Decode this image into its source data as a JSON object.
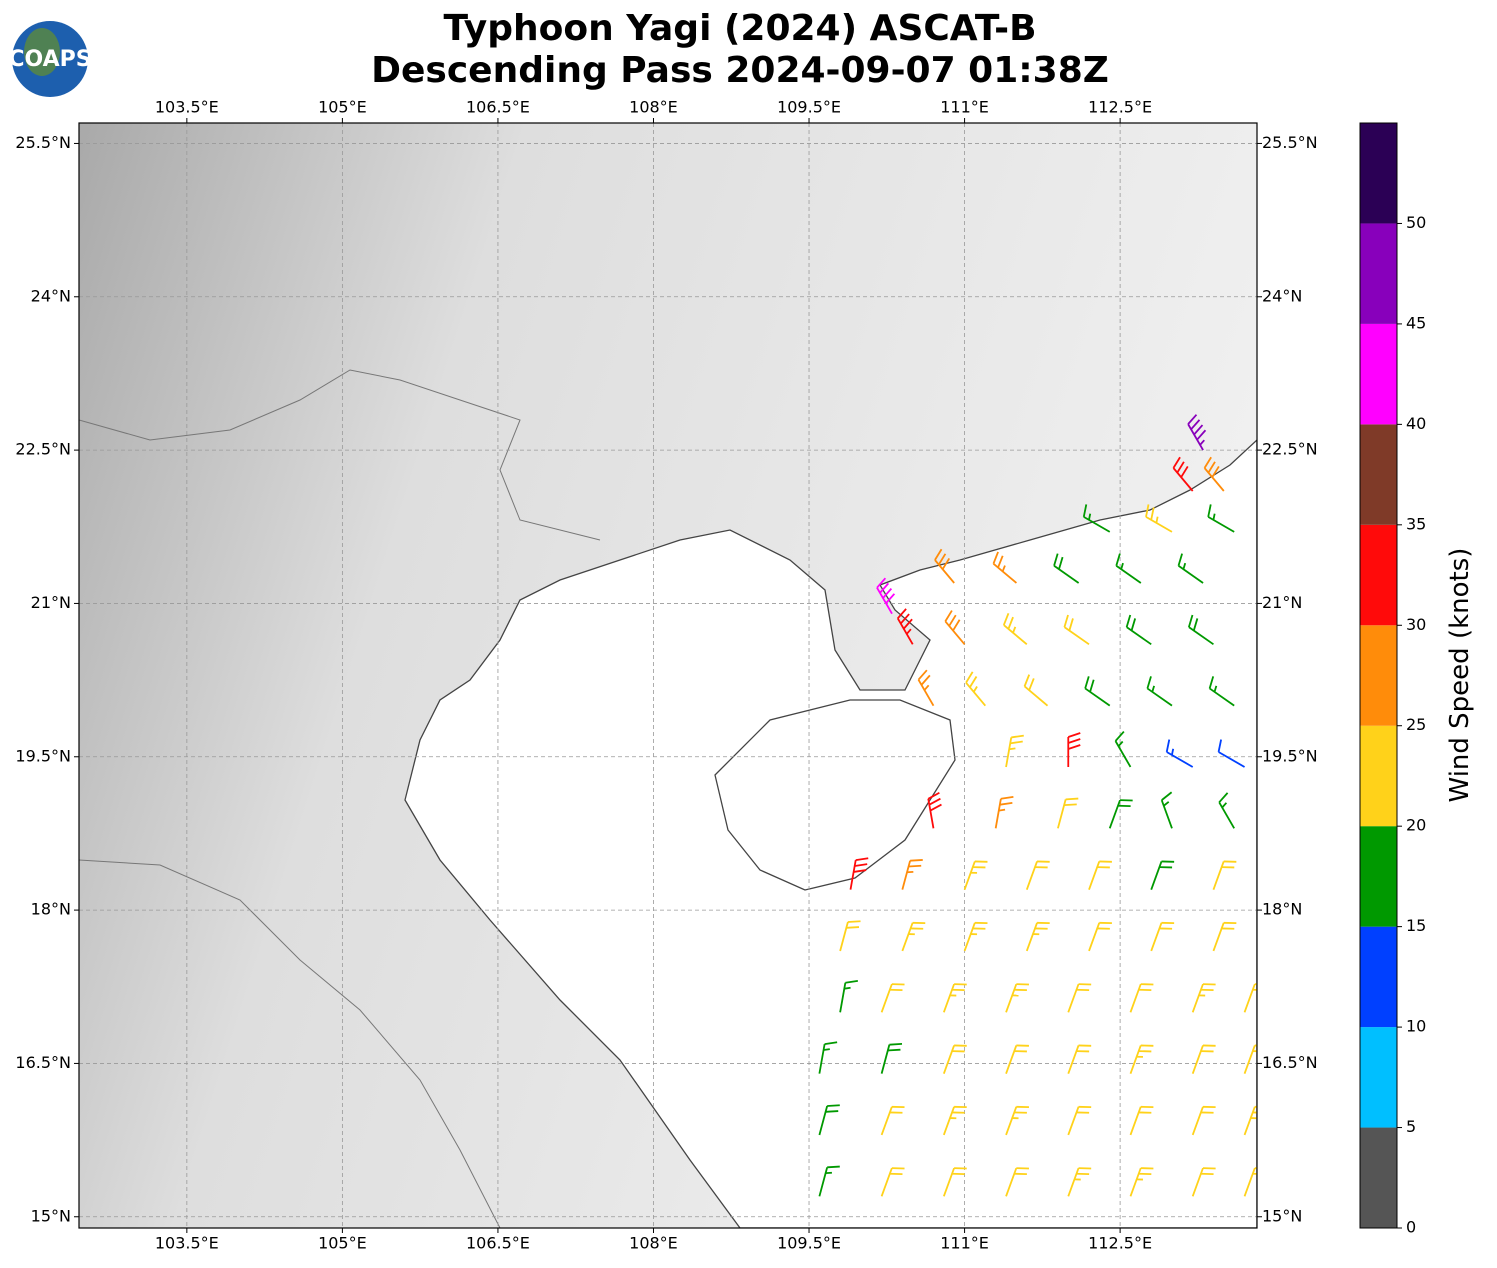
{
  "map": {
    "title": "Typhoon Yagi (2024) ASCAT-B",
    "subtitle": "Descending Pass 2024-09-07 01:38Z",
    "logo_text": "COAPS",
    "xlim": [
      102.46,
      113.82
    ],
    "ylim": [
      14.89,
      25.7
    ],
    "xticks": [
      {
        "value": 103.5,
        "label": "103.5°E"
      },
      {
        "value": 105,
        "label": "105°E"
      },
      {
        "value": 106.5,
        "label": "106.5°E"
      },
      {
        "value": 108,
        "label": "108°E"
      },
      {
        "value": 109.5,
        "label": "109.5°E"
      },
      {
        "value": 111,
        "label": "111°E"
      },
      {
        "value": 112.5,
        "label": "112.5°E"
      }
    ],
    "yticks": [
      {
        "value": 15,
        "label": "15°N"
      },
      {
        "value": 16.5,
        "label": "16.5°N"
      },
      {
        "value": 18,
        "label": "18°N"
      },
      {
        "value": 19.5,
        "label": "19.5°N"
      },
      {
        "value": 21,
        "label": "21°N"
      },
      {
        "value": 22.5,
        "label": "22.5°N"
      },
      {
        "value": 24,
        "label": "24°N"
      },
      {
        "value": 25.5,
        "label": "25.5°N"
      }
    ],
    "grid": true,
    "colorbar": {
      "label": "Wind Speed (knots)",
      "lim": [
        0,
        55
      ],
      "ticks": [
        0,
        5,
        10,
        15,
        20,
        25,
        30,
        35,
        40,
        45,
        50
      ],
      "bins": [
        0,
        5,
        10,
        15,
        20,
        25,
        30,
        35,
        40,
        45,
        50,
        55
      ],
      "colors": [
        "#555555",
        "#00bfff",
        "#0040ff",
        "#009900",
        "#ffd21a",
        "#ff8c0a",
        "#ff0a0a",
        "#7f3a28",
        "#ff00ff",
        "#8800bb",
        "#2b0055"
      ]
    },
    "wind_barbs": {
      "lon": [
        109.6,
        110.2,
        110.8,
        111.4,
        112.0,
        112.6,
        113.2,
        113.7,
        109.6,
        110.2,
        110.8,
        111.4,
        112.0,
        112.6,
        113.2,
        113.7,
        109.6,
        110.2,
        110.8,
        111.4,
        112.0,
        112.6,
        113.2,
        113.7,
        109.8,
        110.2,
        110.8,
        111.4,
        112.0,
        112.6,
        113.2,
        113.7,
        109.8,
        110.4,
        111.0,
        111.6,
        112.2,
        112.8,
        113.4,
        109.9,
        110.4,
        111.0,
        111.6,
        112.2,
        112.8,
        113.4,
        110.7,
        111.3,
        111.9,
        112.4,
        113.0,
        113.6,
        111.4,
        112.0,
        112.6,
        113.2,
        113.7,
        110.7,
        111.2,
        111.8,
        112.4,
        113.0,
        113.6,
        110.5,
        111.0,
        111.6,
        112.2,
        112.8,
        113.4,
        110.9,
        111.5,
        112.1,
        112.7,
        113.3,
        110.3,
        112.4,
        113.0,
        113.6,
        113.2,
        113.5,
        113.3
      ],
      "lat": [
        15.2,
        15.2,
        15.2,
        15.2,
        15.2,
        15.2,
        15.2,
        15.2,
        15.8,
        15.8,
        15.8,
        15.8,
        15.8,
        15.8,
        15.8,
        15.8,
        16.4,
        16.4,
        16.4,
        16.4,
        16.4,
        16.4,
        16.4,
        16.4,
        17.0,
        17.0,
        17.0,
        17.0,
        17.0,
        17.0,
        17.0,
        17.0,
        17.6,
        17.6,
        17.6,
        17.6,
        17.6,
        17.6,
        17.6,
        18.2,
        18.2,
        18.2,
        18.2,
        18.2,
        18.2,
        18.2,
        18.8,
        18.8,
        18.8,
        18.8,
        18.8,
        18.8,
        19.4,
        19.4,
        19.4,
        19.4,
        19.4,
        20.0,
        20.0,
        20.0,
        20.0,
        20.0,
        20.0,
        20.6,
        20.6,
        20.6,
        20.6,
        20.6,
        20.6,
        21.2,
        21.2,
        21.2,
        21.2,
        21.2,
        20.9,
        21.7,
        21.7,
        21.7,
        22.1,
        22.1,
        22.5
      ],
      "speed": [
        17,
        21,
        22,
        22,
        23,
        23,
        22,
        21,
        18,
        22,
        23,
        23,
        22,
        22,
        22,
        23,
        17,
        18,
        22,
        22,
        22,
        23,
        22,
        22,
        17,
        21,
        23,
        24,
        22,
        22,
        23,
        22,
        21,
        24,
        23,
        23,
        22,
        21,
        22,
        31,
        27,
        24,
        22,
        21,
        19,
        21,
        32,
        27,
        22,
        18,
        17,
        16,
        24,
        30,
        17,
        13,
        12,
        27,
        24,
        22,
        19,
        17,
        17,
        33,
        28,
        24,
        22,
        19,
        18,
        29,
        27,
        19,
        17,
        17,
        42,
        16,
        23,
        17,
        32,
        28,
        47
      ],
      "direction": [
        15,
        20,
        20,
        20,
        20,
        20,
        20,
        20,
        15,
        20,
        20,
        20,
        20,
        20,
        20,
        20,
        10,
        15,
        20,
        20,
        20,
        20,
        20,
        20,
        10,
        20,
        20,
        20,
        20,
        20,
        20,
        20,
        15,
        20,
        20,
        20,
        20,
        20,
        20,
        10,
        15,
        20,
        20,
        20,
        20,
        20,
        350,
        10,
        15,
        20,
        340,
        330,
        10,
        0,
        330,
        300,
        300,
        330,
        320,
        310,
        305,
        305,
        305,
        330,
        320,
        310,
        305,
        305,
        305,
        320,
        310,
        305,
        305,
        305,
        330,
        300,
        300,
        300,
        320,
        320,
        330
      ]
    }
  }
}
